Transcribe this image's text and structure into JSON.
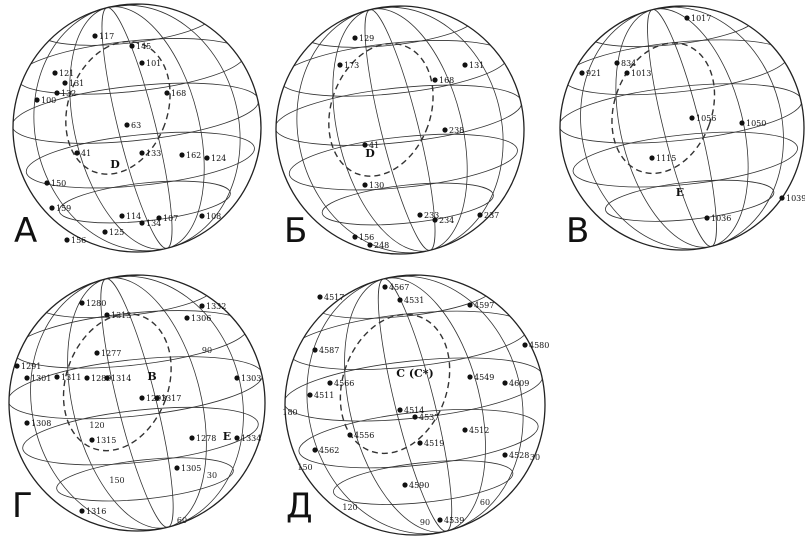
{
  "panels": [
    {
      "letter": "А",
      "regions": [
        "D"
      ],
      "points": [
        "117",
        "145",
        "101",
        "121",
        "131",
        "132",
        "100",
        "168",
        "63",
        "41",
        "133",
        "162",
        "124",
        "150",
        "159",
        "114",
        "134",
        "107",
        "108",
        "156",
        "125"
      ],
      "grid_labels": []
    },
    {
      "letter": "Б",
      "regions": [
        "D"
      ],
      "points": [
        "129",
        "173",
        "131",
        "168",
        "238",
        "41",
        "130",
        "233",
        "234",
        "248",
        "237",
        "156"
      ],
      "grid_labels": []
    },
    {
      "letter": "В",
      "regions": [
        "E"
      ],
      "points": [
        "1017",
        "834",
        "921",
        "1013",
        "1036",
        "1039",
        "1115",
        "1056",
        "1050"
      ],
      "grid_labels": []
    },
    {
      "letter": "Г",
      "regions": [
        "B",
        "E"
      ],
      "points": [
        "1280",
        "1313",
        "1332",
        "1306",
        "1277",
        "1311",
        "1289",
        "1314",
        "1293",
        "1317",
        "1303",
        "1305",
        "1316",
        "1315",
        "1278",
        "1334",
        "1291",
        "1301",
        "1308"
      ],
      "grid_labels": [
        "30",
        "60",
        "90",
        "120",
        "150"
      ]
    },
    {
      "letter": "Д",
      "regions": [
        "C (C*)"
      ],
      "points": [
        "4567",
        "4517",
        "4531",
        "4587",
        "4566",
        "4511",
        "4514",
        "4556",
        "4519",
        "4528",
        "4537",
        "4539",
        "4590",
        "4609",
        "4512",
        "4562",
        "4549",
        "4597",
        "4580"
      ],
      "grid_labels": [
        "180",
        "150",
        "120",
        "90",
        "60",
        "30"
      ]
    }
  ]
}
